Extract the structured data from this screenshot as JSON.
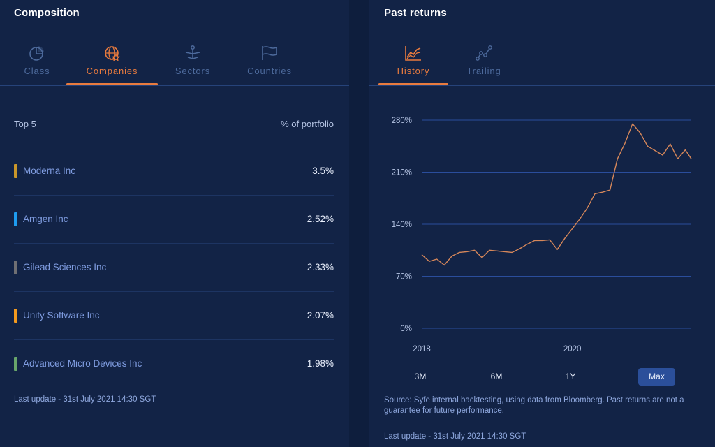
{
  "composition": {
    "title": "Composition",
    "tabs": [
      {
        "label": "Class",
        "icon": "pie-chart-icon",
        "active": false
      },
      {
        "label": "Companies",
        "icon": "globe-star-icon",
        "active": true
      },
      {
        "label": "Sectors",
        "icon": "network-icon",
        "active": false
      },
      {
        "label": "Countries",
        "icon": "flag-icon",
        "active": false
      }
    ],
    "table": {
      "header_left": "Top 5",
      "header_right": "% of portfolio",
      "rows": [
        {
          "name": "Moderna Inc",
          "pct": "3.5%",
          "color": "#c9962a"
        },
        {
          "name": "Amgen Inc",
          "pct": "2.52%",
          "color": "#1e9cf0"
        },
        {
          "name": "Gilead Sciences Inc",
          "pct": "2.33%",
          "color": "#6f6f73"
        },
        {
          "name": "Unity Software Inc",
          "pct": "2.07%",
          "color": "#f39a1e"
        },
        {
          "name": "Advanced Micro Devices Inc",
          "pct": "1.98%",
          "color": "#68a56b"
        }
      ]
    },
    "last_update": "Last update - 31st July 2021 14:30 SGT"
  },
  "past_returns": {
    "title": "Past returns",
    "tabs": [
      {
        "label": "History",
        "icon": "line-chart-icon",
        "active": true
      },
      {
        "label": "Trailing",
        "icon": "trend-dots-icon",
        "active": false
      }
    ],
    "ranges": [
      {
        "label": "3M",
        "active": false
      },
      {
        "label": "6M",
        "active": false
      },
      {
        "label": "1Y",
        "active": false
      },
      {
        "label": "Max",
        "active": true
      }
    ],
    "source": "Source: Syfe internal backtesting, using data from Bloomberg. Past returns are not a guarantee for future performance.",
    "last_update": "Last update - 31st July 2021 14:30 SGT"
  },
  "colors": {
    "accent": "#e97b3e",
    "line": "#d6875a",
    "grid": "#2a4d9c",
    "background": "#122346"
  },
  "chart_data": {
    "type": "line",
    "x_tick_labels": [
      "2018",
      "2020"
    ],
    "y_tick_labels": [
      "280%",
      "210%",
      "140%",
      "70%",
      "0%"
    ],
    "y_ticks": [
      280,
      210,
      140,
      70,
      0
    ],
    "ylim": [
      0,
      280
    ],
    "xlim": [
      2018.0,
      2021.58
    ],
    "grid": true,
    "series": [
      {
        "x": [
          2018.0,
          2018.1,
          2018.2,
          2018.3,
          2018.4,
          2018.5,
          2018.6,
          2018.7,
          2018.8,
          2018.9,
          2019.0,
          2019.1,
          2019.2,
          2019.3,
          2019.4,
          2019.5,
          2019.6,
          2019.7,
          2019.8,
          2019.9,
          2020.0,
          2020.1,
          2020.2,
          2020.3,
          2020.4,
          2020.5,
          2020.6,
          2020.7,
          2020.8,
          2020.9,
          2021.0,
          2021.1,
          2021.2,
          2021.3,
          2021.4,
          2021.5,
          2021.58
        ],
        "y": [
          99,
          90,
          93,
          85,
          97,
          102,
          103,
          105,
          95,
          105,
          104,
          103,
          102,
          107,
          113,
          118,
          118,
          119,
          106,
          121,
          134,
          147,
          162,
          181,
          183,
          186,
          228,
          249,
          275,
          263,
          245,
          239,
          233,
          248,
          228,
          240,
          228
        ]
      }
    ]
  }
}
